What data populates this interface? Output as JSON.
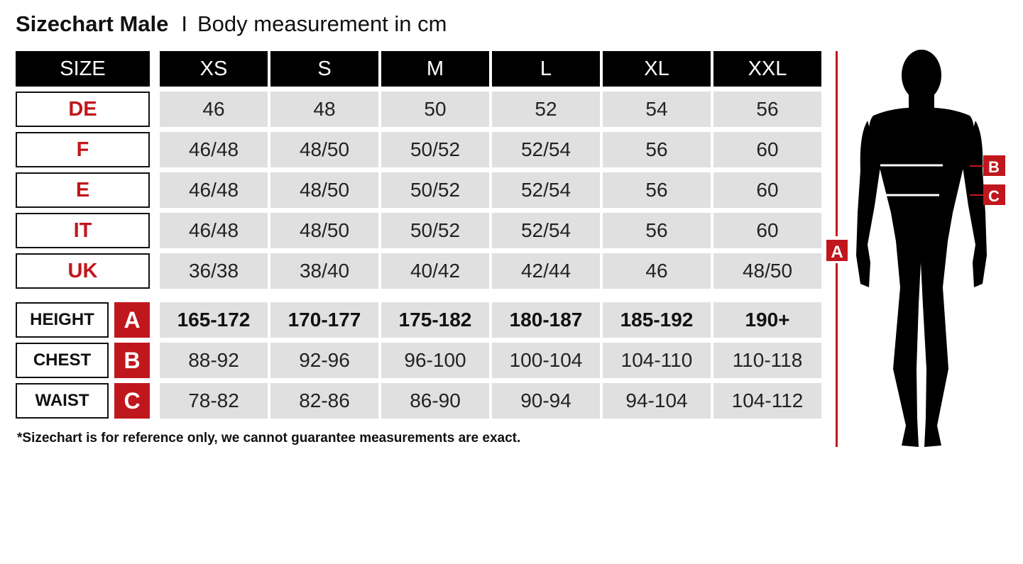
{
  "header": {
    "title": "Sizechart Male",
    "separator": "I",
    "subtitle": "Body measurement in cm"
  },
  "table": {
    "corner": "SIZE",
    "sizes": [
      "XS",
      "S",
      "M",
      "L",
      "XL",
      "XXL"
    ],
    "systems": [
      {
        "label": "DE",
        "values": [
          "46",
          "48",
          "50",
          "52",
          "54",
          "56"
        ]
      },
      {
        "label": "F",
        "values": [
          "46/48",
          "48/50",
          "50/52",
          "52/54",
          "56",
          "60"
        ]
      },
      {
        "label": "E",
        "values": [
          "46/48",
          "48/50",
          "50/52",
          "52/54",
          "56",
          "60"
        ]
      },
      {
        "label": "IT",
        "values": [
          "46/48",
          "48/50",
          "50/52",
          "52/54",
          "56",
          "60"
        ]
      },
      {
        "label": "UK",
        "values": [
          "36/38",
          "38/40",
          "40/42",
          "42/44",
          "46",
          "48/50"
        ]
      }
    ],
    "measurements": [
      {
        "label": "HEIGHT",
        "letter": "A",
        "values": [
          "165-172",
          "170-177",
          "175-182",
          "180-187",
          "185-192",
          "190+"
        ]
      },
      {
        "label": "CHEST",
        "letter": "B",
        "values": [
          "88-92",
          "92-96",
          "96-100",
          "100-104",
          "104-110",
          "110-118"
        ]
      },
      {
        "label": "WAIST",
        "letter": "C",
        "values": [
          "78-82",
          "82-86",
          "86-90",
          "90-94",
          "94-104",
          "104-112"
        ]
      }
    ]
  },
  "note": "*Sizechart is for reference only, we cannot guarantee measurements are exact.",
  "figure": {
    "marker_a": "A",
    "marker_b": "B",
    "marker_c": "C",
    "icon": "male-body-silhouette"
  },
  "colors": {
    "accent": "#c0171d",
    "header_bg": "#000000",
    "cell_bg": "#e0e0e0"
  }
}
